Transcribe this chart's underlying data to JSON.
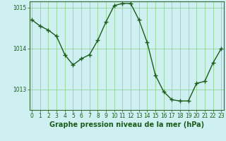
{
  "x": [
    0,
    1,
    2,
    3,
    4,
    5,
    6,
    7,
    8,
    9,
    10,
    11,
    12,
    13,
    14,
    15,
    16,
    17,
    18,
    19,
    20,
    21,
    22,
    23
  ],
  "y": [
    1014.7,
    1014.55,
    1014.45,
    1014.3,
    1013.85,
    1013.6,
    1013.75,
    1013.85,
    1014.2,
    1014.65,
    1015.05,
    1015.1,
    1015.1,
    1014.7,
    1014.15,
    1013.35,
    1012.95,
    1012.75,
    1012.72,
    1012.72,
    1013.15,
    1013.2,
    1013.65,
    1014.0
  ],
  "line_color": "#1a5c1a",
  "marker": "+",
  "marker_size": 4,
  "marker_edge_width": 1.0,
  "background_color": "#cff0f0",
  "grid_color": "#88cc88",
  "xlabel": "Graphe pression niveau de la mer (hPa)",
  "ylim": [
    1012.5,
    1015.15
  ],
  "yticks": [
    1013,
    1014,
    1015
  ],
  "xticks": [
    0,
    1,
    2,
    3,
    4,
    5,
    6,
    7,
    8,
    9,
    10,
    11,
    12,
    13,
    14,
    15,
    16,
    17,
    18,
    19,
    20,
    21,
    22,
    23
  ],
  "xtick_labels": [
    "0",
    "1",
    "2",
    "3",
    "4",
    "5",
    "6",
    "7",
    "8",
    "9",
    "10",
    "11",
    "12",
    "13",
    "14",
    "15",
    "16",
    "17",
    "18",
    "19",
    "20",
    "21",
    "22",
    "23"
  ],
  "tick_fontsize": 5.5,
  "xlabel_fontsize": 7,
  "line_width": 1.0,
  "spine_color": "#336633",
  "text_color": "#1a5c1a"
}
